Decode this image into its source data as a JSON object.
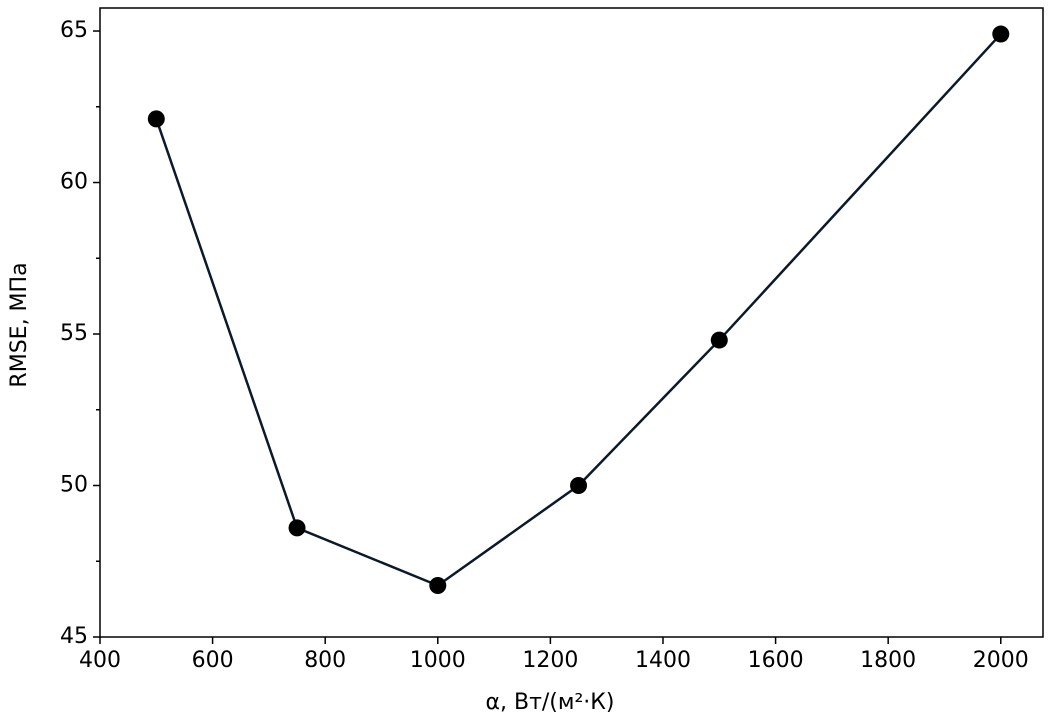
{
  "chart_data": {
    "type": "line",
    "xlabel": "α, Вт/(м²·К)",
    "ylabel": "RMSE, МПа",
    "x": [
      500,
      750,
      1000,
      1250,
      1500,
      2000
    ],
    "series": [
      {
        "color": "#0b1a2b",
        "marker_color": "#000000",
        "values": [
          62.1,
          48.6,
          46.7,
          50.0,
          54.8,
          64.9
        ]
      }
    ],
    "xlim": [
      400,
      2075
    ],
    "ylim": [
      45,
      65.76
    ],
    "xticks": [
      400,
      600,
      800,
      1000,
      1200,
      1400,
      1600,
      1800,
      2000
    ],
    "yticks": [
      45,
      50,
      55,
      60,
      65
    ],
    "yminorticks": [
      47.5,
      52.5,
      57.5,
      62.5
    ],
    "grid": false
  }
}
